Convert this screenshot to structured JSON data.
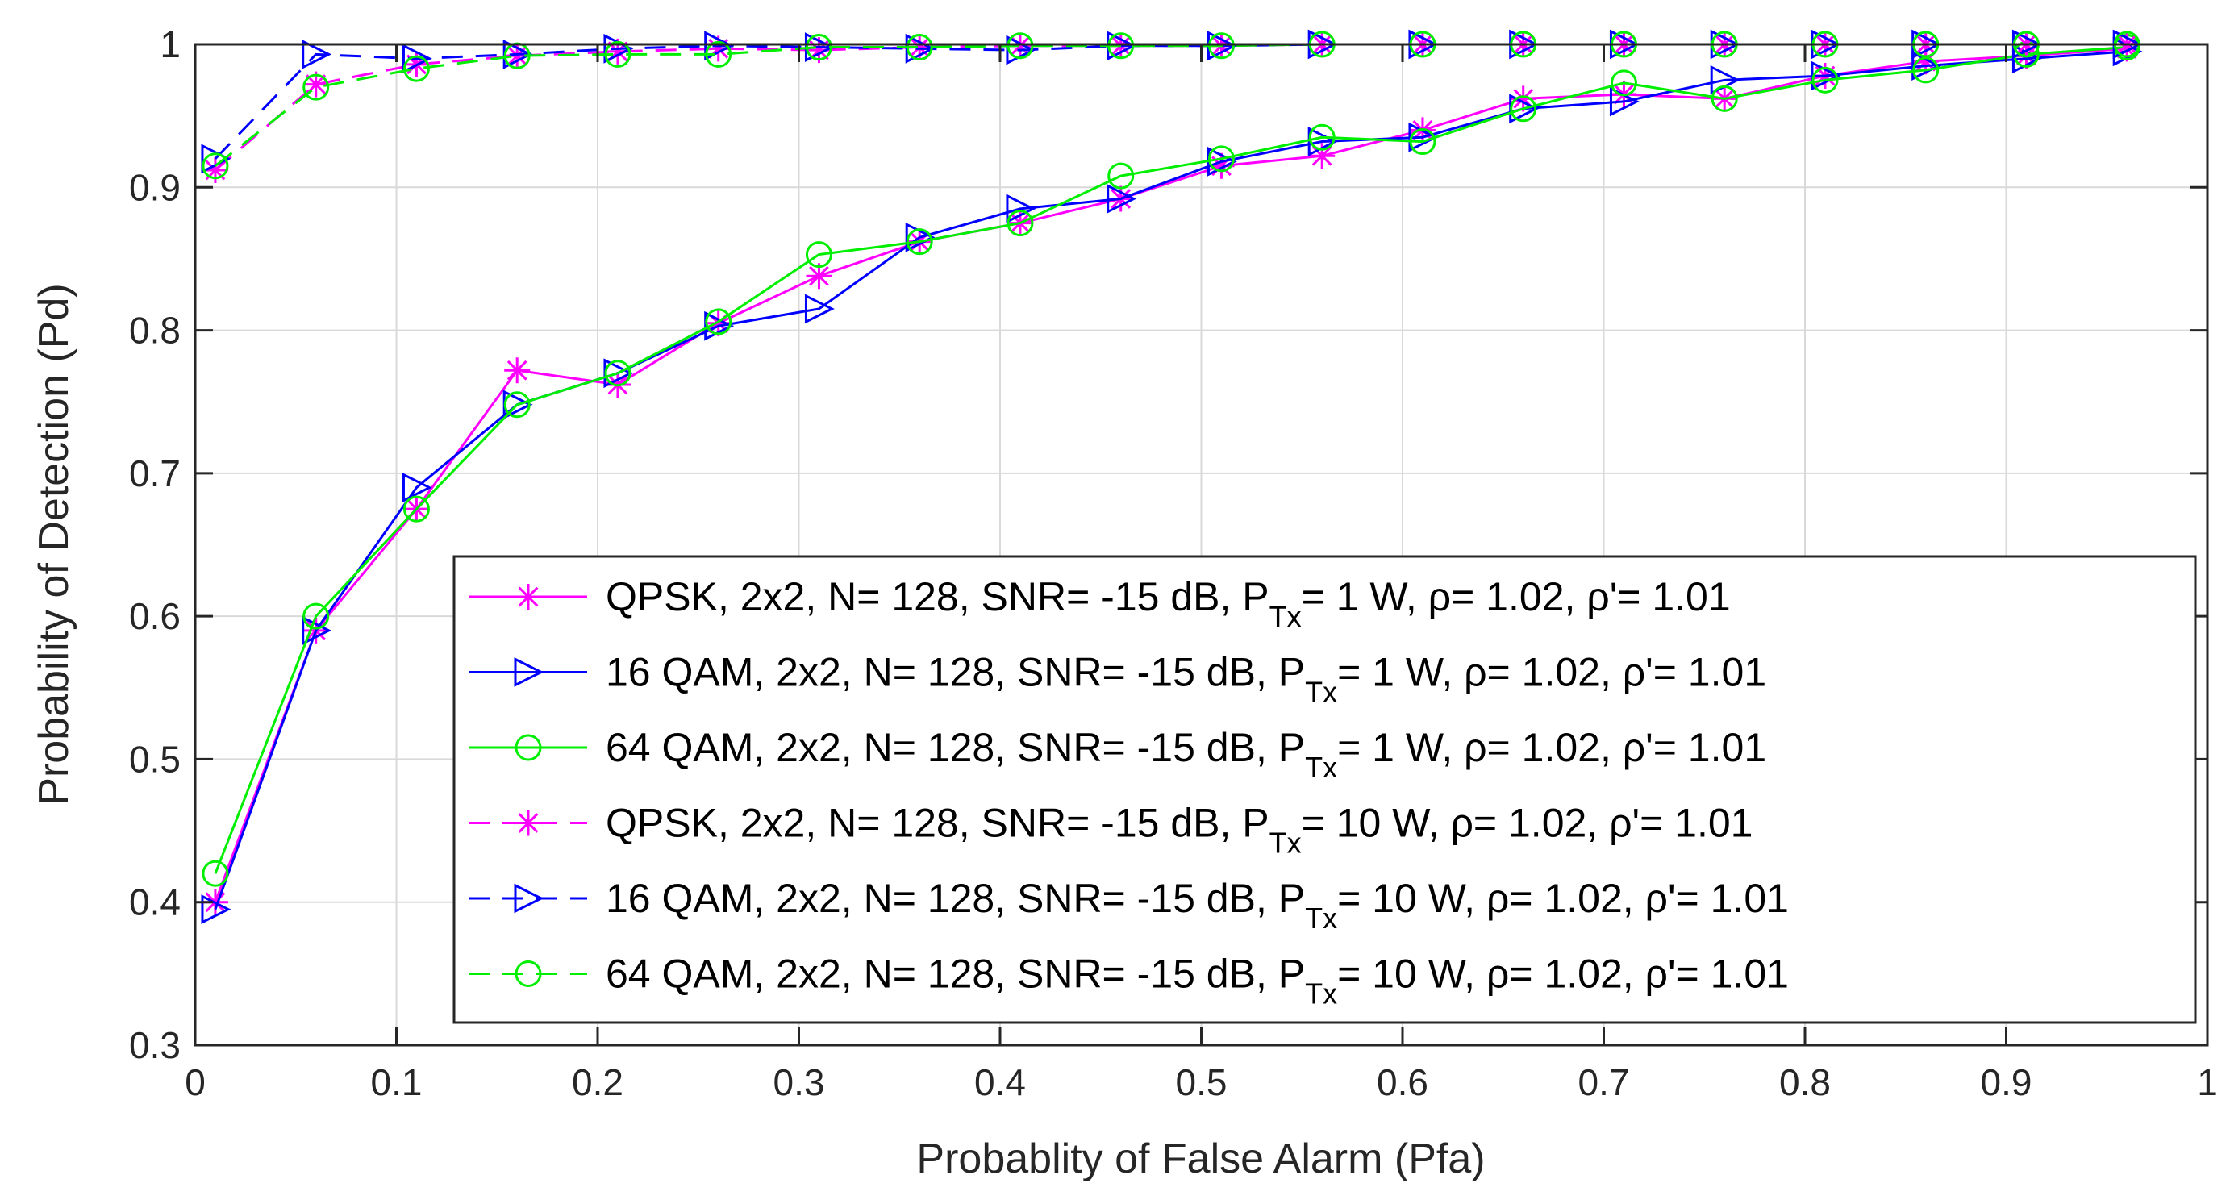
{
  "chart_data": {
    "type": "line",
    "title": "",
    "xlabel": "Probablity of False Alarm (Pfa)",
    "ylabel": "Probability of Detection (Pd)",
    "xlim": [
      0,
      1
    ],
    "ylim": [
      0.3,
      1
    ],
    "xticks": [
      0,
      0.1,
      0.2,
      0.3,
      0.4,
      0.5,
      0.6,
      0.7,
      0.8,
      0.9,
      1
    ],
    "xtick_labels": [
      "0",
      "0.1",
      "0.2",
      "0.3",
      "0.4",
      "0.5",
      "0.6",
      "0.7",
      "0.8",
      "0.9",
      "1"
    ],
    "yticks": [
      0.3,
      0.4,
      0.5,
      0.6,
      0.7,
      0.8,
      0.9,
      1
    ],
    "ytick_labels": [
      "0.3",
      "0.4",
      "0.5",
      "0.6",
      "0.7",
      "0.8",
      "0.9",
      "1"
    ],
    "grid": true,
    "legend_position": "bottom-right",
    "x": [
      0.01,
      0.06,
      0.11,
      0.16,
      0.21,
      0.26,
      0.31,
      0.36,
      0.41,
      0.46,
      0.51,
      0.56,
      0.61,
      0.66,
      0.71,
      0.76,
      0.81,
      0.86,
      0.91,
      0.96
    ],
    "series": [
      {
        "name": "QPSK, 2x2, N= 128, SNR= -15 dB, P_Tx= 1 W, ρ= 1.02, ρ'= 1.01",
        "legend": {
          "pre": "QPSK, 2x2, N= 128, SNR= -15 dB, P",
          "sub": "Tx",
          "post": "= 1 W, ρ= 1.02, ρ'= 1.01"
        },
        "color": "#ff00ff",
        "marker": "asterisk",
        "dash": "solid",
        "values": [
          0.4,
          0.59,
          0.675,
          0.772,
          0.762,
          0.805,
          0.838,
          0.862,
          0.875,
          0.892,
          0.915,
          0.922,
          0.94,
          0.962,
          0.965,
          0.962,
          0.978,
          0.988,
          0.992,
          0.997
        ]
      },
      {
        "name": "16 QAM, 2x2, N= 128, SNR= -15 dB, P_Tx= 1 W, ρ= 1.02, ρ'= 1.01",
        "legend": {
          "pre": "16 QAM, 2x2, N= 128, SNR= -15 dB, P",
          "sub": "Tx",
          "post": "= 1 W, ρ= 1.02, ρ'= 1.01"
        },
        "color": "#0000ff",
        "marker": "triangle-right",
        "dash": "solid",
        "values": [
          0.395,
          0.59,
          0.69,
          0.748,
          0.77,
          0.803,
          0.815,
          0.865,
          0.885,
          0.892,
          0.918,
          0.932,
          0.935,
          0.955,
          0.96,
          0.975,
          0.978,
          0.985,
          0.99,
          0.995
        ]
      },
      {
        "name": "64 QAM, 2x2, N= 128, SNR= -15 dB, P_Tx= 1 W, ρ= 1.02, ρ'= 1.01",
        "legend": {
          "pre": "64 QAM, 2x2, N= 128, SNR= -15 dB, P",
          "sub": "Tx",
          "post": "= 1 W, ρ= 1.02, ρ'= 1.01"
        },
        "color": "#00ee00",
        "marker": "circle",
        "dash": "solid",
        "values": [
          0.42,
          0.6,
          0.675,
          0.748,
          0.77,
          0.806,
          0.853,
          0.862,
          0.875,
          0.908,
          0.92,
          0.935,
          0.932,
          0.955,
          0.973,
          0.962,
          0.975,
          0.982,
          0.993,
          0.998
        ]
      },
      {
        "name": "QPSK, 2x2, N= 128, SNR= -15 dB, P_Tx= 10 W, ρ= 1.02, ρ'= 1.01",
        "legend": {
          "pre": "QPSK, 2x2, N= 128, SNR= -15 dB, P",
          "sub": "Tx",
          "post": "= 10 W, ρ= 1.02, ρ'= 1.01"
        },
        "color": "#ff00ff",
        "marker": "asterisk",
        "dash": "dashed",
        "values": [
          0.912,
          0.972,
          0.986,
          0.992,
          0.995,
          0.997,
          0.996,
          0.998,
          0.999,
          0.999,
          0.999,
          1.0,
          1.0,
          1.0,
          1.0,
          1.0,
          1.0,
          1.0,
          1.0,
          1.0
        ]
      },
      {
        "name": "16 QAM, 2x2, N= 128, SNR= -15 dB, P_Tx= 10 W, ρ= 1.02, ρ'= 1.01",
        "legend": {
          "pre": "16 QAM, 2x2, N= 128, SNR= -15 dB, P",
          "sub": "Tx",
          "post": "= 10 W, ρ= 1.02, ρ'= 1.01"
        },
        "color": "#0000ff",
        "marker": "triangle-right",
        "dash": "dashed",
        "values": [
          0.92,
          0.993,
          0.99,
          0.993,
          0.997,
          0.999,
          0.998,
          0.997,
          0.996,
          0.999,
          0.999,
          1.0,
          1.0,
          1.0,
          1.0,
          1.0,
          1.0,
          1.0,
          1.0,
          1.0
        ]
      },
      {
        "name": "64 QAM, 2x2, N= 128, SNR= -15 dB, P_Tx= 10 W, ρ= 1.02, ρ'= 1.01",
        "legend": {
          "pre": "64 QAM, 2x2, N= 128, SNR= -15 dB, P",
          "sub": "Tx",
          "post": "= 10 W, ρ= 1.02, ρ'= 1.01"
        },
        "color": "#00ee00",
        "marker": "circle",
        "dash": "dashed",
        "values": [
          0.915,
          0.97,
          0.983,
          0.992,
          0.993,
          0.993,
          0.998,
          0.998,
          0.999,
          0.999,
          0.999,
          1.0,
          1.0,
          1.0,
          1.0,
          1.0,
          1.0,
          1.0,
          1.0,
          1.0
        ]
      }
    ]
  }
}
